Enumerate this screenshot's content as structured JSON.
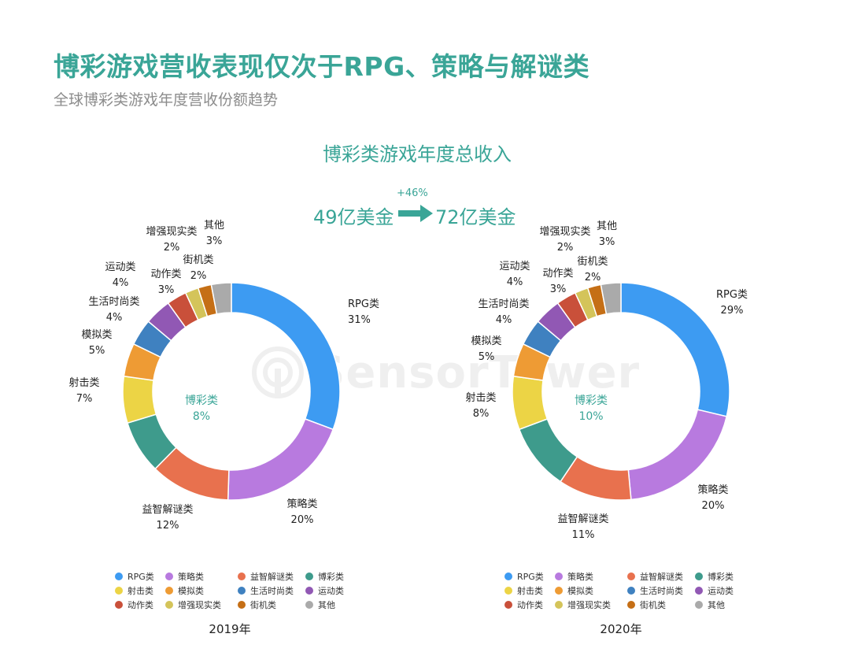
{
  "header": {
    "title": "博彩游戏营收表现仅次于RPG、策略与解谜类",
    "subtitle": "全球博彩类游戏年度营收份额趋势"
  },
  "summary": {
    "title": "博彩类游戏年度总收入",
    "from": "49亿美金",
    "to": "72亿美金",
    "growth": "+46%"
  },
  "watermark": "SensorTower",
  "colors": {
    "accent": "#3aa597",
    "RPG类": "#3d9bf2",
    "策略类": "#b87adf",
    "益智解谜类": "#e8714e",
    "博彩类": "#3e9b8c",
    "射击类": "#ecd445",
    "模拟类": "#ee9b34",
    "生活时尚类": "#3f81c0",
    "运动类": "#9158b4",
    "动作类": "#c9503a",
    "增强现实类": "#d4c45a",
    "街机类": "#c56f16",
    "其他": "#aaaaaa"
  },
  "chart_data": [
    {
      "type": "pie",
      "title": "2019年",
      "categories": [
        "RPG类",
        "策略类",
        "益智解谜类",
        "博彩类",
        "射击类",
        "模拟类",
        "生活时尚类",
        "运动类",
        "动作类",
        "增强现实类",
        "街机类",
        "其他"
      ],
      "values": [
        31,
        20,
        12,
        8,
        7,
        5,
        4,
        4,
        3,
        2,
        2,
        3
      ],
      "labels": [
        "31%",
        "20%",
        "12%",
        "8%",
        "7%",
        "5%",
        "4%",
        "4%",
        "3%",
        "2%",
        "2%",
        "3%"
      ],
      "center_label": "博彩类",
      "center_value": "8%",
      "legend": "bottom"
    },
    {
      "type": "pie",
      "title": "2020年",
      "categories": [
        "RPG类",
        "策略类",
        "益智解谜类",
        "博彩类",
        "射击类",
        "模拟类",
        "生活时尚类",
        "运动类",
        "动作类",
        "增强现实类",
        "街机类",
        "其他"
      ],
      "values": [
        29,
        20,
        11,
        10,
        8,
        5,
        4,
        4,
        3,
        2,
        2,
        3
      ],
      "labels": [
        "29%",
        "20%",
        "11%",
        "10%",
        "8%",
        "5%",
        "4%",
        "4%",
        "3%",
        "2%",
        "2%",
        "3%"
      ],
      "center_label": "博彩类",
      "center_value": "10%",
      "legend": "bottom"
    }
  ]
}
